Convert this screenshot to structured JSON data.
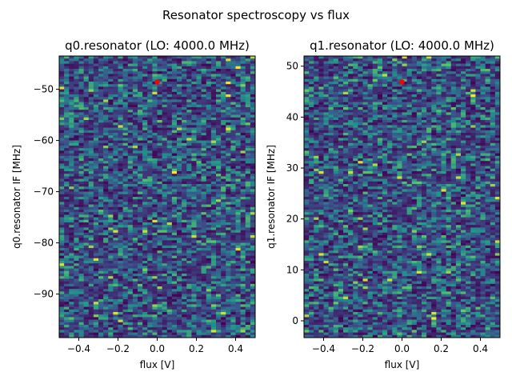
{
  "suptitle": "Resonator spectroscopy vs flux",
  "colormap": [
    "#440154",
    "#3b528b",
    "#21918c",
    "#5ec962",
    "#fde725"
  ],
  "marker_color": "#ff0000",
  "chart_data": [
    {
      "type": "heatmap",
      "title": "q0.resonator (LO: 4000.0 MHz)",
      "xlabel": "flux [V]",
      "ylabel": "q0.resonator IF [MHz]",
      "xlim": [
        -0.5,
        0.5
      ],
      "ylim": [
        -98.5,
        -43.5
      ],
      "xticks": [
        -0.4,
        -0.2,
        0.0,
        0.2,
        0.4
      ],
      "xtick_labels": [
        "−0.4",
        "−0.2",
        "0.0",
        "0.2",
        "0.4"
      ],
      "yticks": [
        -50,
        -60,
        -70,
        -80,
        -90
      ],
      "ytick_labels": [
        "−50",
        "−60",
        "−70",
        "−80",
        "−90"
      ],
      "marker": {
        "x": 0.0,
        "y": -48.6
      },
      "grid": false
    },
    {
      "type": "heatmap",
      "title": "q1.resonator (LO: 4000.0 MHz)",
      "xlabel": "flux [V]",
      "ylabel": "q1.resonator IF [MHz]",
      "xlim": [
        -0.5,
        0.5
      ],
      "ylim": [
        -3.3,
        52
      ],
      "xticks": [
        -0.4,
        -0.2,
        0.0,
        0.2,
        0.4
      ],
      "xtick_labels": [
        "−0.4",
        "−0.2",
        "0.0",
        "0.2",
        "0.4"
      ],
      "yticks": [
        0,
        10,
        20,
        30,
        40,
        50
      ],
      "ytick_labels": [
        "0",
        "10",
        "20",
        "30",
        "40",
        "50"
      ],
      "marker": {
        "x": 0.0,
        "y": 46.9
      },
      "grid": false
    }
  ]
}
